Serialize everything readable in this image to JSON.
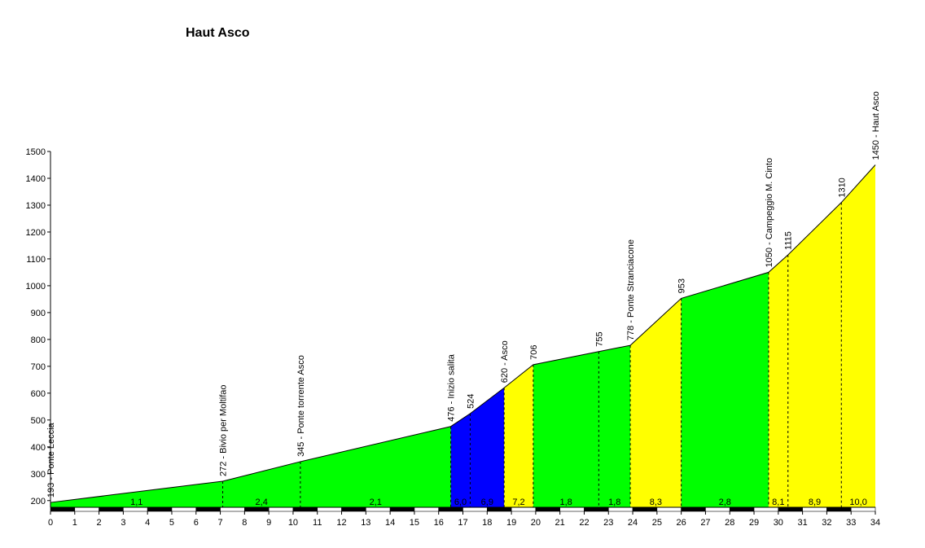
{
  "chart_data": {
    "type": "area",
    "title": "Haut Asco",
    "xlabel": "",
    "ylabel": "",
    "xlim": [
      0,
      34
    ],
    "ylim": [
      175,
      1500
    ],
    "x_ticks": [
      0,
      1,
      2,
      3,
      4,
      5,
      6,
      7,
      8,
      9,
      10,
      11,
      12,
      13,
      14,
      15,
      16,
      17,
      18,
      19,
      20,
      21,
      22,
      23,
      24,
      25,
      26,
      27,
      28,
      29,
      30,
      31,
      32,
      33,
      34
    ],
    "y_ticks": [
      200,
      300,
      400,
      500,
      600,
      700,
      800,
      900,
      1000,
      1100,
      1200,
      1300,
      1400,
      1500
    ],
    "profile": [
      {
        "x": 0,
        "y": 193,
        "label": "193 - Ponte Leccia"
      },
      {
        "x": 7.1,
        "y": 272,
        "label": "272 - Bivio per Moltifao"
      },
      {
        "x": 10.3,
        "y": 345,
        "label": "345 - Ponte torrente Asco"
      },
      {
        "x": 16.5,
        "y": 476,
        "label": "476 - Inizio salita"
      },
      {
        "x": 17.3,
        "y": 524,
        "label": "524"
      },
      {
        "x": 18.7,
        "y": 620,
        "label": "620 - Asco"
      },
      {
        "x": 19.9,
        "y": 706,
        "label": "706"
      },
      {
        "x": 22.6,
        "y": 755,
        "label": "755"
      },
      {
        "x": 23.9,
        "y": 778,
        "label": "778 - Ponte Stranciacone"
      },
      {
        "x": 26.0,
        "y": 953,
        "label": "953"
      },
      {
        "x": 29.6,
        "y": 1050,
        "label": "1050 - Campeggio M. Cinto"
      },
      {
        "x": 30.4,
        "y": 1115,
        "label": "1115"
      },
      {
        "x": 32.6,
        "y": 1310,
        "label": "1310"
      },
      {
        "x": 34.0,
        "y": 1450,
        "label": "1450 - Haut Asco"
      }
    ],
    "segments": [
      {
        "from": 0,
        "to": 7.1,
        "gradient": "1,1",
        "color": "#00ff00"
      },
      {
        "from": 7.1,
        "to": 10.3,
        "gradient": "2,4",
        "color": "#00ff00"
      },
      {
        "from": 10.3,
        "to": 16.5,
        "gradient": "2,1",
        "color": "#00ff00"
      },
      {
        "from": 16.5,
        "to": 17.3,
        "gradient": "6,0",
        "color": "#0000ff"
      },
      {
        "from": 17.3,
        "to": 18.7,
        "gradient": "6,9",
        "color": "#0000ff"
      },
      {
        "from": 18.7,
        "to": 19.9,
        "gradient": "7,2",
        "color": "#ffff00"
      },
      {
        "from": 19.9,
        "to": 22.6,
        "gradient": "1,8",
        "color": "#00ff00"
      },
      {
        "from": 22.6,
        "to": 23.9,
        "gradient": "1,8",
        "color": "#00ff00"
      },
      {
        "from": 23.9,
        "to": 26.0,
        "gradient": "8,3",
        "color": "#ffff00"
      },
      {
        "from": 26.0,
        "to": 29.6,
        "gradient": "2,8",
        "color": "#00ff00"
      },
      {
        "from": 29.6,
        "to": 30.4,
        "gradient": "8,1",
        "color": "#ffff00"
      },
      {
        "from": 30.4,
        "to": 32.6,
        "gradient": "8,9",
        "color": "#ffff00"
      },
      {
        "from": 32.6,
        "to": 34.0,
        "gradient": "10,0",
        "color": "#ffff00"
      }
    ],
    "grid": false,
    "legend": "none"
  }
}
